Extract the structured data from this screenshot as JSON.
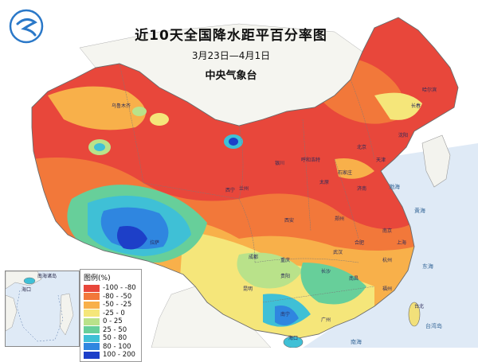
{
  "header": {
    "title": "近10天全国降水距平百分率图",
    "date_range": "3月23日—4月1日",
    "agency": "中央气象台"
  },
  "legend": {
    "title": "图例(%)",
    "items": [
      {
        "label": "-100 - -80",
        "color": "#e8473b"
      },
      {
        "label": "-80 - -50",
        "color": "#f2783a"
      },
      {
        "label": "-50 - -25",
        "color": "#f8b04a"
      },
      {
        "label": "-25 - 0",
        "color": "#f5e67a"
      },
      {
        "label": "0 - 25",
        "color": "#b9e28a"
      },
      {
        "label": "25 - 50",
        "color": "#67cf9a"
      },
      {
        "label": "50 - 80",
        "color": "#3fc0d6"
      },
      {
        "label": "80 - 100",
        "color": "#2f86e0"
      },
      {
        "label": "100 - 200",
        "color": "#1d3fc8"
      }
    ]
  },
  "colors": {
    "sea": "#dfeaf6",
    "neighbor_land": "#f7f7f2",
    "border": "#8a8a8a"
  },
  "cities": [
    "乌鲁木齐",
    "西宁",
    "成都",
    "重庆",
    "贵阳",
    "昆明",
    "南宁",
    "广州",
    "长沙",
    "武汉",
    "郑州",
    "西安",
    "太原",
    "石家庄",
    "北京",
    "天津",
    "济南",
    "南京",
    "上海",
    "杭州",
    "福州",
    "合肥",
    "南昌",
    "沈阳",
    "长春",
    "哈尔滨",
    "呼和浩特",
    "银川",
    "兰州",
    "拉萨",
    "海口",
    "台北"
  ],
  "seas": [
    "渤海",
    "黄海",
    "东海",
    "南海",
    "台湾岛"
  ],
  "inset_labels": [
    "南海诸岛",
    "海口"
  ]
}
